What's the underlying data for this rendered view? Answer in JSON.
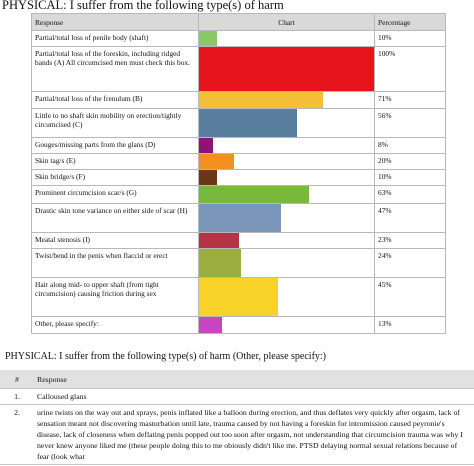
{
  "title": "PHYSICAL: I suffer from the following type(s) of harm",
  "headers": {
    "response": "Response",
    "chart": "Chart",
    "percentage": "Percentage"
  },
  "rows": [
    {
      "label": "Partial/total loss of penile body (shaft)",
      "pct_text": "10%",
      "value": 10,
      "color": "#8ac96a"
    },
    {
      "label": "Partial/total loss of the foreskin, including ridged bands (A) All circumcised men must check this box.",
      "pct_text": "100%",
      "value": 100,
      "color": "#e8141b"
    },
    {
      "label": "Partial/total loss of the frenulum (B)",
      "pct_text": "71%",
      "value": 71,
      "color": "#f4c038"
    },
    {
      "label": "Little to no shaft skin mobility on erection/tightly circumcised (C)",
      "pct_text": "56%",
      "value": 56,
      "color": "#5a7f9e"
    },
    {
      "label": "Gouges/missing parts from the glans (D)",
      "pct_text": "8%",
      "value": 8,
      "color": "#8b1474"
    },
    {
      "label": "Skin tag/s (E)",
      "pct_text": "20%",
      "value": 20,
      "color": "#f1901f"
    },
    {
      "label": "Skin bridge/s (F)",
      "pct_text": "10%",
      "value": 10,
      "color": "#6a3814"
    },
    {
      "label": "Prominent circumcision scar/s (G)",
      "pct_text": "63%",
      "value": 63,
      "color": "#78b83a"
    },
    {
      "label": "Drastic skin tone variance on either side of scar (H)",
      "pct_text": "47%",
      "value": 47,
      "color": "#7c96ba"
    },
    {
      "label": "Meatal stenosis (I)",
      "pct_text": "23%",
      "value": 23,
      "color": "#b53446"
    },
    {
      "label": "Twist/bend in the penis when flaccid or erect",
      "pct_text": "24%",
      "value": 24,
      "color": "#9cae3e"
    },
    {
      "label": "Hair along mid- to upper shaft (from tight circumcision) causing friction during sex",
      "pct_text": "45%",
      "value": 45,
      "color": "#f7d229"
    },
    {
      "label": "Other, please specify:",
      "pct_text": "13%",
      "value": 13,
      "color": "#c944bf"
    }
  ],
  "other": {
    "title": "PHYSICAL: I suffer from the following type(s) of harm (Other, please specify:)",
    "col_num": "#",
    "col_response": "Response",
    "items": [
      {
        "num": "1.",
        "text": "Calloused glans"
      },
      {
        "num": "2.",
        "text": "urine twists on the way out and sprays, penis inflated like a balloon during erection, and thus deflates very quickly after orgasm, lack of sensation meant not discovering masturbation until late, trauma caused by not having a foreskin for intromission caused peyronie's disease, lack of closeness when deflating penis popped out too soon after orgasm, not understanding that circumcision trauma was why I never knew anyone liked me (these people doing this to me obiously didn't like me. PTSD delaying normal sexual relations because of fear (look what"
      }
    ]
  }
}
